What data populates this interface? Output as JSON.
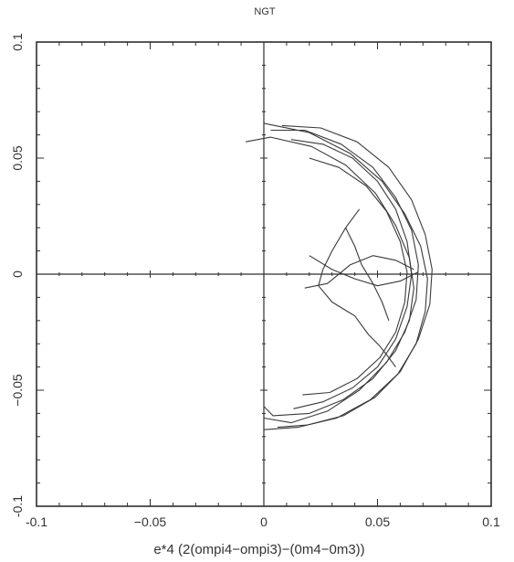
{
  "chart_data": {
    "type": "line",
    "title": "NGT",
    "xlabel": "e*4 (2(ompi4−ompi3)−(0m4−0m3))",
    "ylabel": "",
    "xlim": [
      -0.1,
      0.1
    ],
    "ylim": [
      -0.1,
      0.1
    ],
    "xticks": [
      {
        "value": -0.1,
        "label": "-0.1"
      },
      {
        "value": -0.05,
        "label": "−0.05"
      },
      {
        "value": 0,
        "label": "0"
      },
      {
        "value": 0.05,
        "label": "0.05"
      },
      {
        "value": 0.1,
        "label": "0.1"
      }
    ],
    "yticks": [
      {
        "value": -0.1,
        "label": "-0.1"
      },
      {
        "value": -0.05,
        "label": "−0.05"
      },
      {
        "value": 0,
        "label": "0"
      },
      {
        "value": 0.05,
        "label": "0.05"
      },
      {
        "value": 0.1,
        "label": "0.1"
      }
    ],
    "zero_lines": true,
    "grid": false,
    "line_color": "#3a3a3a",
    "series": [
      {
        "x": [
          0.0,
          0.02,
          0.038,
          0.052,
          0.062,
          0.069,
          0.072,
          0.071,
          0.067,
          0.059,
          0.047,
          0.032,
          0.015,
          0.0
        ],
        "y": [
          0.065,
          0.061,
          0.052,
          0.04,
          0.026,
          0.012,
          -0.002,
          -0.016,
          -0.03,
          -0.043,
          -0.054,
          -0.062,
          -0.066,
          -0.067
        ]
      },
      {
        "x": [
          -0.008,
          0.003,
          0.021,
          0.036,
          0.049,
          0.058,
          0.064,
          0.066,
          0.064,
          0.058,
          0.048,
          0.035,
          0.02,
          0.004,
          0.0
        ],
        "y": [
          0.057,
          0.059,
          0.055,
          0.047,
          0.035,
          0.021,
          0.007,
          -0.006,
          -0.02,
          -0.033,
          -0.045,
          -0.054,
          -0.06,
          -0.061,
          -0.057
        ]
      },
      {
        "x": [
          0.003,
          0.018,
          0.034,
          0.048,
          0.058,
          0.065,
          0.068,
          0.067,
          0.062,
          0.054,
          0.042,
          0.028,
          0.012,
          0.0
        ],
        "y": [
          0.062,
          0.062,
          0.056,
          0.046,
          0.033,
          0.019,
          0.004,
          -0.011,
          -0.025,
          -0.038,
          -0.05,
          -0.059,
          -0.064,
          -0.062
        ]
      },
      {
        "x": [
          0.008,
          0.025,
          0.041,
          0.055,
          0.065,
          0.071,
          0.074,
          0.073,
          0.068,
          0.06,
          0.049,
          0.035,
          0.019,
          0.006
        ],
        "y": [
          0.064,
          0.063,
          0.057,
          0.046,
          0.032,
          0.017,
          0.002,
          -0.013,
          -0.028,
          -0.042,
          -0.053,
          -0.061,
          -0.065,
          -0.066
        ]
      },
      {
        "x": [
          0.012,
          0.026,
          0.039,
          0.05,
          0.058,
          0.063,
          0.065,
          0.063,
          0.058,
          0.05,
          0.039,
          0.026,
          0.013
        ],
        "y": [
          0.058,
          0.056,
          0.05,
          0.04,
          0.028,
          0.014,
          0.0,
          -0.014,
          -0.028,
          -0.04,
          -0.049,
          -0.055,
          -0.058
        ]
      },
      {
        "x": [
          0.02,
          0.033,
          0.045,
          0.054,
          0.06,
          0.063,
          0.062,
          0.058,
          0.051,
          0.041,
          0.029,
          0.017
        ],
        "y": [
          0.05,
          0.046,
          0.038,
          0.027,
          0.014,
          0.001,
          -0.012,
          -0.025,
          -0.036,
          -0.045,
          -0.051,
          -0.052
        ]
      },
      {
        "x": [
          0.042,
          0.036,
          0.03,
          0.026,
          0.024,
          0.03,
          0.04,
          0.046,
          0.051,
          0.055,
          0.058
        ],
        "y": [
          0.028,
          0.02,
          0.01,
          0.002,
          -0.005,
          -0.012,
          -0.018,
          -0.026,
          -0.031,
          -0.036,
          -0.04
        ]
      },
      {
        "x": [
          0.02,
          0.03,
          0.04,
          0.05,
          0.06,
          0.068
        ],
        "y": [
          0.008,
          0.002,
          -0.002,
          -0.005,
          -0.003,
          0.001
        ]
      },
      {
        "x": [
          0.018,
          0.028,
          0.038,
          0.048,
          0.058,
          0.066
        ],
        "y": [
          -0.006,
          -0.004,
          0.004,
          0.008,
          0.006,
          0.002
        ]
      },
      {
        "x": [
          0.036,
          0.04,
          0.043,
          0.048,
          0.052,
          0.055
        ],
        "y": [
          0.02,
          0.012,
          0.004,
          -0.004,
          -0.012,
          -0.02
        ]
      }
    ]
  }
}
